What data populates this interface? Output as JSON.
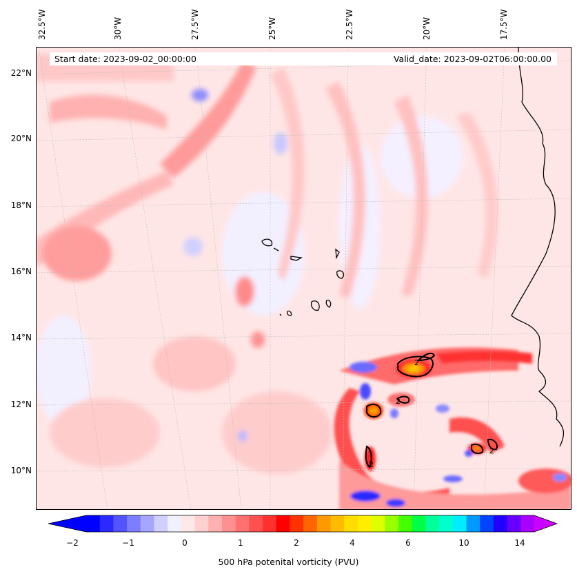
{
  "banner": {
    "start_date": "Start date: 2023-09-02_00:00:00",
    "valid_date": "Valid_date: 2023-09-02T06:00:00.00"
  },
  "longitude_labels": [
    "32.5°W",
    "30°W",
    "27.5°W",
    "25°W",
    "22.5°W",
    "20°W",
    "17.5°W"
  ],
  "latitude_labels": [
    "22°N",
    "20°N",
    "18°N",
    "16°N",
    "14°N",
    "12°N",
    "10°N"
  ],
  "colorbar": {
    "title": "500 hPa potenital vorticity (PVU)",
    "tick_labels": [
      "−2",
      "−1",
      "0",
      "1",
      "2",
      "4",
      "6",
      "10",
      "14"
    ],
    "colors": [
      "#0000ff",
      "#2a2aff",
      "#5353ff",
      "#7d7dff",
      "#a6a6ff",
      "#d0d0ff",
      "#f0f0ff",
      "#ffe8e8",
      "#ffd0d0",
      "#ffb0b0",
      "#ff9090",
      "#ff7070",
      "#ff5050",
      "#ff3030",
      "#ff0000",
      "#ff3300",
      "#ff6600",
      "#ff9900",
      "#ffbb00",
      "#ffdd00",
      "#ffee00",
      "#ddff00",
      "#99ff00",
      "#44ff00",
      "#00ff44",
      "#00ff99",
      "#00ffcc",
      "#00eeff",
      "#0099ff",
      "#0044ff",
      "#2200ff",
      "#6600ff",
      "#aa00ff"
    ],
    "extend_left_color": "#0000ff",
    "extend_right_color": "#cc00ff"
  },
  "contour_label": "2"
}
